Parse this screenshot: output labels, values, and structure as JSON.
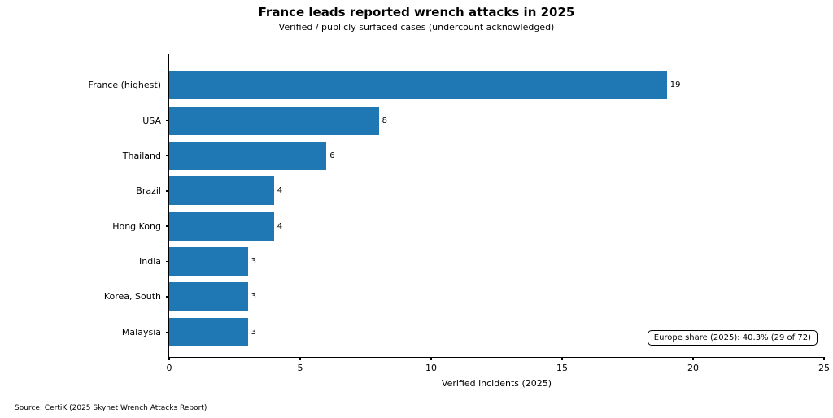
{
  "chart_data": {
    "type": "bar",
    "orientation": "horizontal",
    "title": "France leads reported wrench attacks in 2025",
    "subtitle": "Verified / publicly surfaced cases (undercount acknowledged)",
    "categories": [
      "France (highest)",
      "USA",
      "Thailand",
      "Brazil",
      "Hong Kong",
      "India",
      "Korea, South",
      "Malaysia"
    ],
    "values": [
      19,
      8,
      6,
      4,
      4,
      3,
      3,
      3
    ],
    "xlabel": "Verified incidents (2025)",
    "xlim": [
      0,
      25
    ],
    "xticks": [
      0,
      5,
      10,
      15,
      20,
      25
    ],
    "grid": false,
    "legend": "none",
    "bar_color": "#1f77b4",
    "annotation": "Europe share (2025): 40.3% (29 of 72)",
    "source": "Source: CertiK (2025 Skynet Wrench Attacks Report)"
  }
}
